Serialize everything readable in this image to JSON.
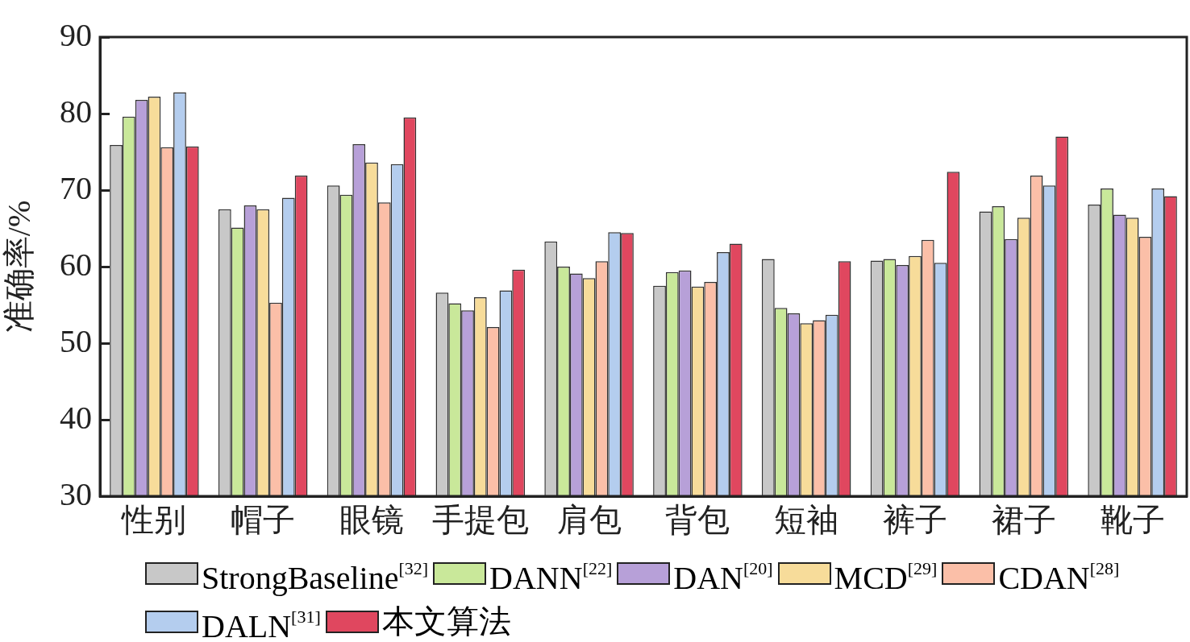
{
  "chart_data": {
    "type": "bar",
    "ylabel": "准确率/%",
    "categories": [
      "性别",
      "帽子",
      "眼镜",
      "手提包",
      "肩包",
      "背包",
      "短袖",
      "裤子",
      "裙子",
      "靴子"
    ],
    "series": [
      {
        "name": "StrongBaseline$^{[32]}$",
        "color": "#c8c8c8",
        "values": [
          75.9,
          67.5,
          70.6,
          56.6,
          63.3,
          57.5,
          61.0,
          60.8,
          67.2,
          68.1
        ]
      },
      {
        "name": "DANN$^{[22]}$",
        "color": "#c9e89a",
        "values": [
          79.6,
          65.1,
          69.4,
          55.2,
          60.0,
          59.3,
          54.6,
          61.0,
          67.9,
          70.2
        ]
      },
      {
        "name": "DAN$^{[20]}$",
        "color": "#b7a0d8",
        "values": [
          81.8,
          68.0,
          76.0,
          54.3,
          59.1,
          59.5,
          53.9,
          60.2,
          63.6,
          66.8
        ]
      },
      {
        "name": "MCD$^{[29]}$",
        "color": "#f7dc9a",
        "values": [
          82.2,
          67.5,
          73.6,
          56.0,
          58.5,
          57.4,
          52.6,
          61.4,
          66.4,
          66.4
        ]
      },
      {
        "name": "CDAN$^{[28]}$",
        "color": "#fbbfa8",
        "values": [
          75.6,
          55.3,
          68.4,
          52.1,
          60.7,
          58.0,
          53.0,
          63.5,
          71.9,
          63.9
        ]
      },
      {
        "name": "DALN$^{[31]}$",
        "color": "#b4cdee",
        "values": [
          82.8,
          69.0,
          73.4,
          56.9,
          64.5,
          61.9,
          53.7,
          60.5,
          70.6,
          70.2
        ]
      },
      {
        "name": "本文算法",
        "color": "#e0475f",
        "values": [
          75.7,
          71.9,
          79.5,
          59.6,
          64.4,
          63.0,
          60.7,
          72.4,
          77.0,
          69.2
        ]
      }
    ],
    "ylim": [
      30,
      90
    ],
    "yticks": [
      30,
      40,
      50,
      60,
      70,
      80,
      90
    ],
    "grid": false,
    "legend": "bottom"
  }
}
